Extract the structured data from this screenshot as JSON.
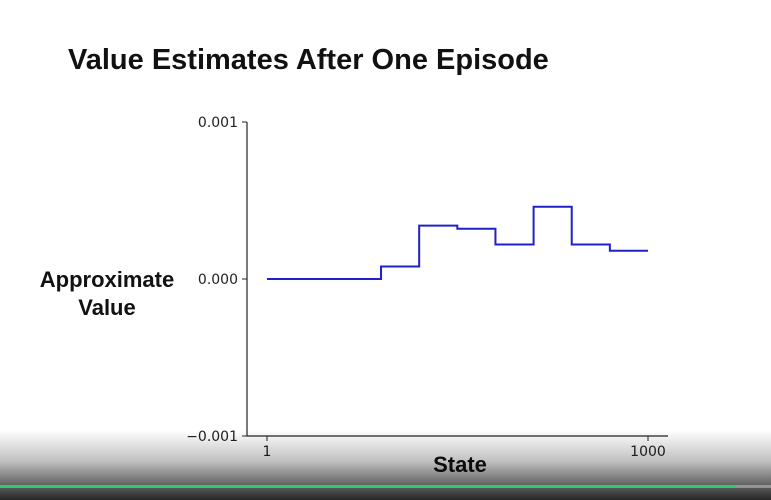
{
  "title": "Value Estimates After One Episode",
  "chart_data": {
    "type": "line",
    "title": "",
    "xlabel": "State",
    "ylabel": "Approximate Value",
    "xlim": [
      1,
      1000
    ],
    "ylim": [
      -0.001,
      0.001
    ],
    "x_ticks": [
      "1",
      "1000"
    ],
    "y_ticks": [
      "−0.001",
      "0.000",
      "0.001"
    ],
    "grid": false,
    "series": [
      {
        "color": "#2020c8",
        "step_segments": [
          {
            "x_start": 1,
            "x_end": 300,
            "y": 0.0
          },
          {
            "x_start": 300,
            "x_end": 400,
            "y": 8e-05
          },
          {
            "x_start": 400,
            "x_end": 500,
            "y": 0.00034
          },
          {
            "x_start": 500,
            "x_end": 600,
            "y": 0.00032
          },
          {
            "x_start": 600,
            "x_end": 700,
            "y": 0.00022
          },
          {
            "x_start": 700,
            "x_end": 800,
            "y": 0.00046
          },
          {
            "x_start": 800,
            "x_end": 900,
            "y": 0.00022
          },
          {
            "x_start": 900,
            "x_end": 1000,
            "y": 0.00018
          }
        ]
      }
    ]
  },
  "video": {
    "progress": 0.955,
    "progress_color": "#2ecc71"
  }
}
